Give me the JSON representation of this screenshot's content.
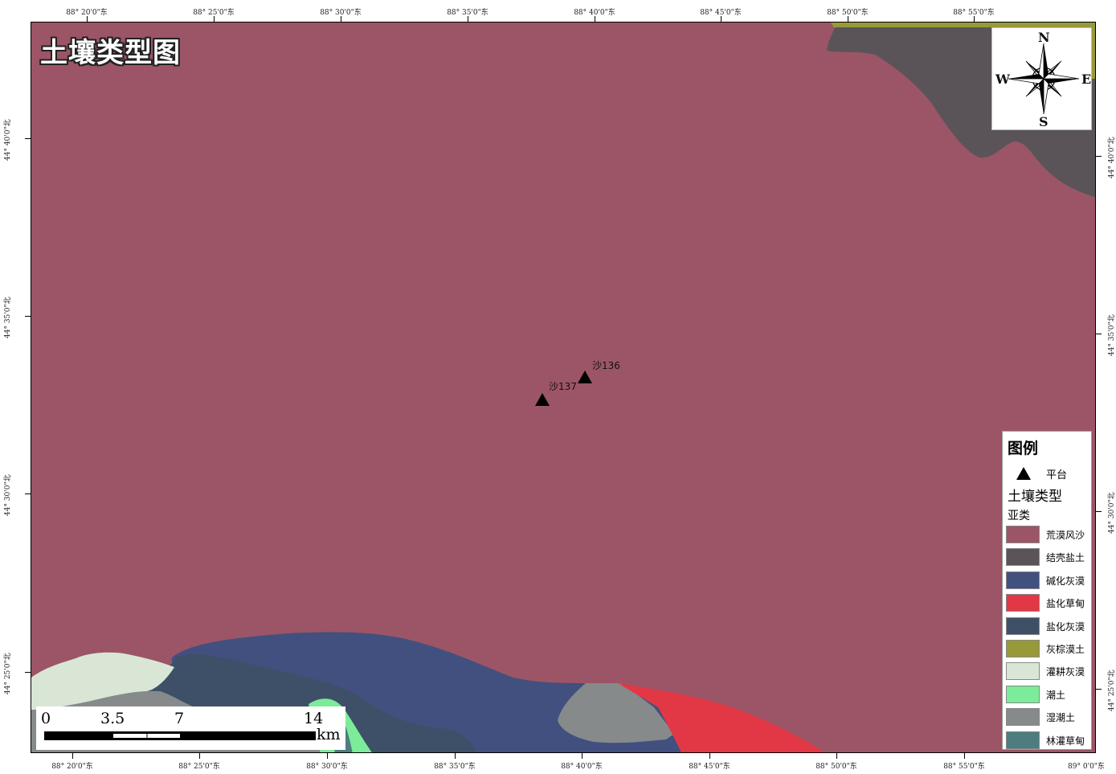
{
  "map": {
    "title": "土壤类型图",
    "colors": {
      "huangmo_fengsha": "#9C5566",
      "jieke_yantu": "#5A5459",
      "jianhua_huimo": "#41507F",
      "yanhua_caodian": "#E23744",
      "yanhua_huimo": "#3E5068",
      "huizong_mo": "#989A3A",
      "guangeng_huimo": "#D9E6D6",
      "chaotu": "#7CEB9A",
      "shichaotu": "#868A8B",
      "linguan_caodian": "#4D7D7E"
    }
  },
  "graticule": {
    "top_labels": [
      "88° 20'0\"东",
      "88° 25'0\"东",
      "88° 30'0\"东",
      "88° 35'0\"东",
      "88° 40'0\"东",
      "88° 45'0\"东",
      "88° 50'0\"东",
      "88° 55'0\"东"
    ],
    "bottom_labels": [
      "88° 20'0\"东",
      "88° 25'0\"东",
      "88° 30'0\"东",
      "88° 35'0\"东",
      "88° 40'0\"东",
      "88° 45'0\"东",
      "88° 50'0\"东",
      "88° 55'0\"东",
      "89° 0'0\"东"
    ],
    "left_labels": [
      "44° 40'0\"北",
      "44° 35'0\"北",
      "44° 30'0\"北",
      "44° 25'0\"北"
    ],
    "right_labels": [
      "44° 40'0\"北",
      "44° 35'0\"北",
      "44° 30'0\"北",
      "44° 25'0\"北"
    ]
  },
  "points": [
    {
      "label": "沙136"
    },
    {
      "label": "沙137"
    }
  ],
  "north_arrow": {
    "n": "N",
    "s": "S",
    "e": "E",
    "w": "W"
  },
  "legend": {
    "title": "图例",
    "point_label": "平台",
    "group_title": "土壤类型",
    "subgroup_title": "亚类",
    "items": [
      {
        "label": "荒漠风沙",
        "color": "#9C5566"
      },
      {
        "label": "结壳盐土",
        "color": "#5A5459"
      },
      {
        "label": "碱化灰漠",
        "color": "#41507F"
      },
      {
        "label": "盐化草甸",
        "color": "#E23744"
      },
      {
        "label": "盐化灰漠",
        "color": "#3E5068"
      },
      {
        "label": "灰棕漠土",
        "color": "#989A3A"
      },
      {
        "label": "灌耕灰漠",
        "color": "#D9E6D6"
      },
      {
        "label": "潮土",
        "color": "#7CEB9A"
      },
      {
        "label": "湿潮土",
        "color": "#868A8B"
      },
      {
        "label": "林灌草甸",
        "color": "#4D7D7E"
      }
    ]
  },
  "scale_bar": {
    "labels": [
      "0",
      "3.5",
      "7",
      "14"
    ],
    "unit": "km"
  }
}
